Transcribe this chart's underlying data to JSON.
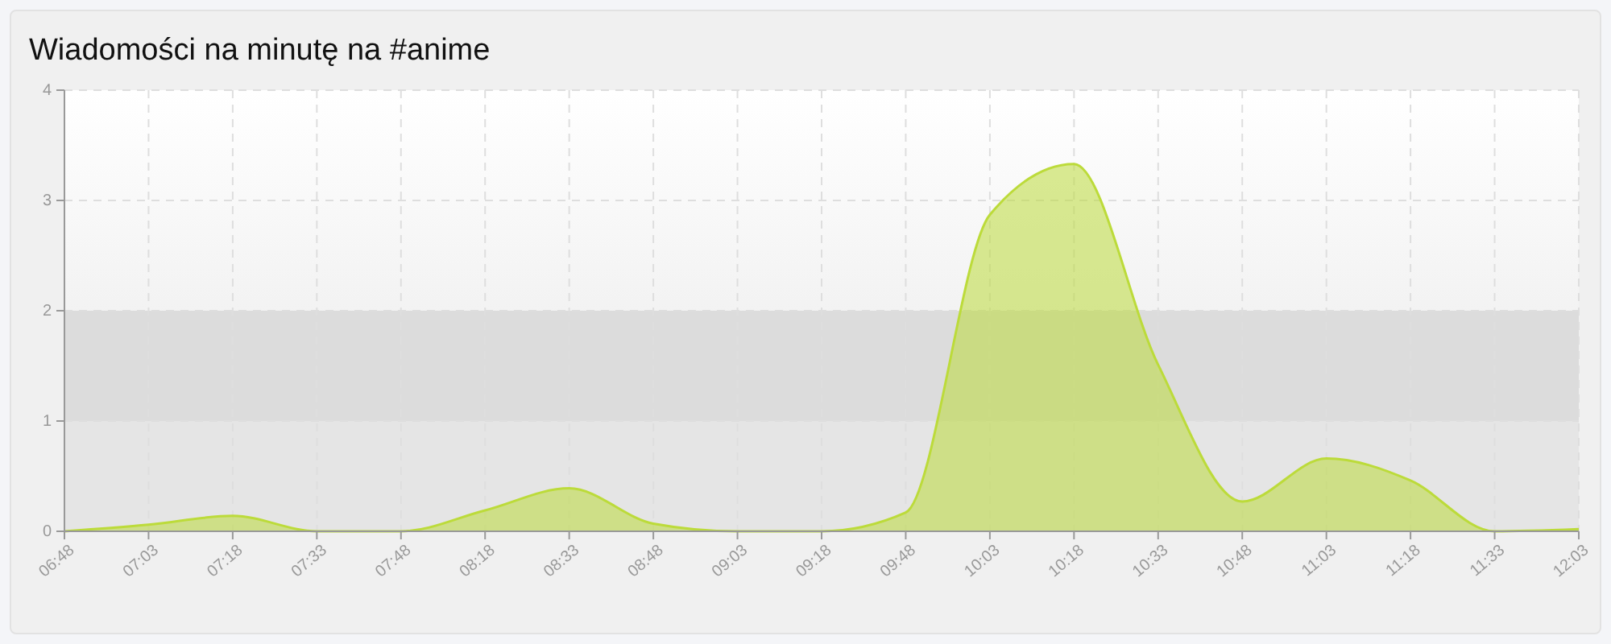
{
  "chart_data": {
    "type": "area",
    "title": "Wiadomości na minutę na #anime",
    "categories": [
      "06:48",
      "07:03",
      "07:18",
      "07:33",
      "07:48",
      "08:18",
      "08:33",
      "08:48",
      "09:03",
      "09:18",
      "09:48",
      "10:03",
      "10:18",
      "10:33",
      "10:48",
      "11:03",
      "11:18",
      "11:33",
      "12:03"
    ],
    "ylim": [
      0,
      4
    ],
    "yticks": [
      0,
      1,
      2,
      3,
      4
    ],
    "grid": true,
    "marker": "none",
    "bands": [
      {
        "axis": "y",
        "from": 0,
        "to": 1,
        "color": "#e5e5e5"
      },
      {
        "axis": "y",
        "from": 1,
        "to": 2,
        "color": "#dcdcdc"
      }
    ],
    "series": [
      {
        "color": "#bcdb3a",
        "values": [
          0,
          0.06,
          0.14,
          0,
          0,
          0.19,
          0.39,
          0.07,
          0,
          0,
          0.17,
          2.87,
          3.33,
          1.51,
          0.27,
          0.66,
          0.46,
          0,
          0.02
        ]
      }
    ]
  }
}
